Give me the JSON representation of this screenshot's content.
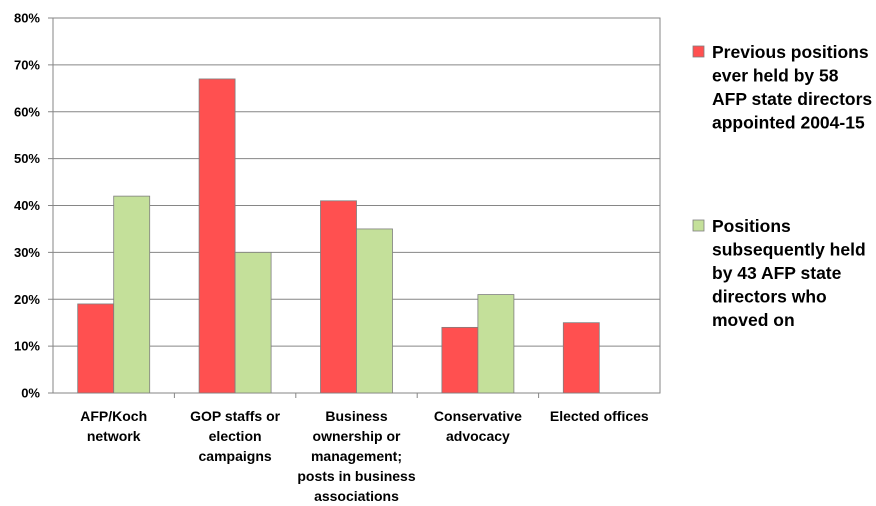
{
  "chart_data": {
    "type": "bar",
    "categories": [
      [
        "AFP/Koch",
        "network"
      ],
      [
        "GOP staffs or",
        "election",
        "campaigns"
      ],
      [
        "Business",
        "ownership or",
        "management;",
        "posts in business",
        "associations"
      ],
      [
        "Conservative",
        "advocacy"
      ],
      [
        "Elected offices"
      ]
    ],
    "series": [
      {
        "name": [
          "Previous positions",
          "ever held by 58",
          "AFP state directors",
          "appointed 2004-15"
        ],
        "color": "#ff5050",
        "values": [
          19,
          67,
          41,
          14,
          15
        ]
      },
      {
        "name": [
          "Positions",
          "subsequently held",
          "by 43 AFP state",
          "directors who",
          "moved on"
        ],
        "color": "#c4e09a",
        "values": [
          42,
          30,
          35,
          21,
          null
        ]
      }
    ],
    "ylim": [
      0,
      80
    ],
    "yticks": [
      0,
      10,
      20,
      30,
      40,
      50,
      60,
      70,
      80
    ],
    "ytick_labels": [
      "0%",
      "10%",
      "20%",
      "30%",
      "40%",
      "50%",
      "60%",
      "70%",
      "80%"
    ],
    "grid": true,
    "legend_position": "right"
  }
}
